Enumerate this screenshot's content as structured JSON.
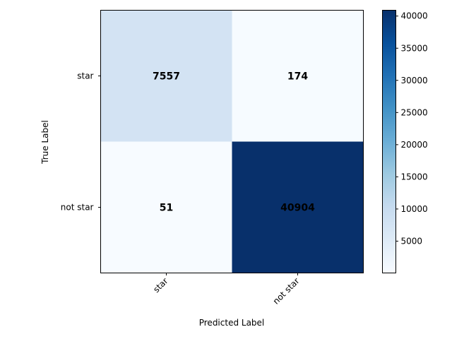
{
  "chart_data": {
    "type": "heatmap",
    "x_categories": [
      "star",
      "not star"
    ],
    "y_categories": [
      "star",
      "not star"
    ],
    "values": [
      [
        7557,
        174
      ],
      [
        51,
        40904
      ]
    ],
    "xlabel": "Predicted Label",
    "ylabel": "True Label",
    "colormap": "Blues",
    "colorbar": {
      "vmin": 51,
      "vmax": 40904,
      "ticks": [
        5000,
        10000,
        15000,
        20000,
        25000,
        30000,
        35000,
        40000
      ],
      "tick_labels": [
        "5000",
        "10000",
        "15000",
        "20000",
        "25000",
        "30000",
        "35000",
        "40000"
      ]
    }
  }
}
